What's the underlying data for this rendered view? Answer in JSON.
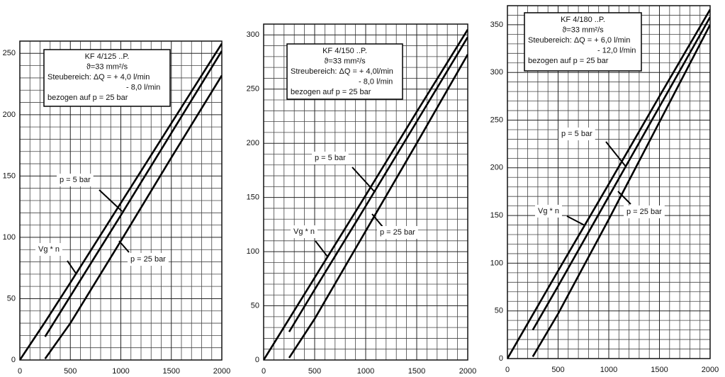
{
  "chart_data": [
    {
      "type": "line",
      "grid": true,
      "annotation_lines": [
        "KF 4/125 ..P.",
        "ϑ=33 mm²/s",
        "Steubereich: ΔQ = + 4,0 l/min",
        "- 8,0 l/min",
        "bezogen auf p = 25 bar"
      ],
      "x": [
        0,
        250,
        500,
        1000,
        1500,
        2000
      ],
      "series": [
        {
          "name": "Vg * n",
          "color": "#000000",
          "values": [
            0,
            31,
            63,
            128,
            193,
            258
          ]
        },
        {
          "name": "p = 5 bar",
          "color": "#000000",
          "values": [
            null,
            19,
            52,
            118,
            185,
            252
          ]
        },
        {
          "name": "p = 25 bar",
          "color": "#000000",
          "values": [
            null,
            1,
            30,
            97,
            165,
            232
          ]
        }
      ],
      "xlim": [
        0,
        2000
      ],
      "xticks": [
        0,
        500,
        1000,
        1500,
        2000
      ],
      "ylim": [
        0,
        260
      ],
      "yticks": [
        0,
        50,
        100,
        150,
        200,
        250
      ]
    },
    {
      "type": "line",
      "grid": true,
      "annotation_lines": [
        "KF 4/150 ..P.",
        "ϑ=33 mm²/s",
        "Streubereich: ΔQ = + 4,0l/min",
        "- 8,0 l/min",
        "bezogen auf p = 25 bar"
      ],
      "x": [
        0,
        250,
        500,
        1000,
        1500,
        2000
      ],
      "series": [
        {
          "name": "Vg * n",
          "color": "#000000",
          "values": [
            0,
            38,
            76,
            152,
            229,
            305
          ]
        },
        {
          "name": "p = 5 bar",
          "color": "#000000",
          "values": [
            null,
            26,
            65,
            142,
            220,
            298
          ]
        },
        {
          "name": "p = 25 bar",
          "color": "#000000",
          "values": [
            null,
            2,
            38,
            119,
            200,
            282
          ]
        }
      ],
      "xlim": [
        0,
        2000
      ],
      "xticks": [
        0,
        500,
        1000,
        1500,
        2000
      ],
      "ylim": [
        0,
        310
      ],
      "yticks": [
        0,
        50,
        100,
        150,
        200,
        250,
        300
      ]
    },
    {
      "type": "line",
      "grid": true,
      "annotation_lines": [
        "KF 4/180 ..P.",
        "ϑ=33 mm²/s",
        "Steubereich: ΔQ = +  6,0  l/min",
        "- 12,0  l/min",
        "bezogen auf p = 25 bar"
      ],
      "x": [
        0,
        250,
        500,
        1000,
        1500,
        2000
      ],
      "series": [
        {
          "name": "Vg * n",
          "color": "#000000",
          "values": [
            0,
            46,
            92,
            183,
            275,
            366
          ]
        },
        {
          "name": "p = 5 bar",
          "color": "#000000",
          "values": [
            null,
            30,
            76,
            170,
            264,
            358
          ]
        },
        {
          "name": "p = 25 bar",
          "color": "#000000",
          "values": [
            null,
            2,
            47,
            146,
            248,
            350
          ]
        }
      ],
      "xlim": [
        0,
        2000
      ],
      "xticks": [
        0,
        500,
        1000,
        1500,
        2000
      ],
      "ylim": [
        0,
        370
      ],
      "yticks": [
        0,
        50,
        100,
        150,
        200,
        250,
        300,
        350
      ]
    }
  ]
}
